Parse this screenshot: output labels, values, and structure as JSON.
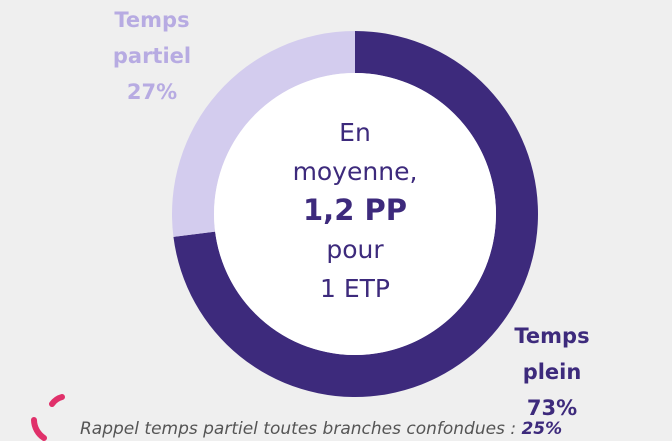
{
  "chart_data": {
    "type": "donut",
    "categories": [
      "Temps plein",
      "Temps partiel"
    ],
    "values": [
      73,
      27
    ],
    "value_labels": [
      "73%",
      "27%"
    ],
    "colors": [
      "#3d2a7c",
      "#d3ccee"
    ],
    "label_colors": [
      "#3d2a7c",
      "#b7abe2"
    ],
    "center_lines": [
      "En",
      "moyenne,",
      "1,2 PP",
      "pour",
      "1 ETP"
    ],
    "footnote": {
      "text": "Rappel temps partiel toutes branches confondues :",
      "value": "25%"
    }
  }
}
